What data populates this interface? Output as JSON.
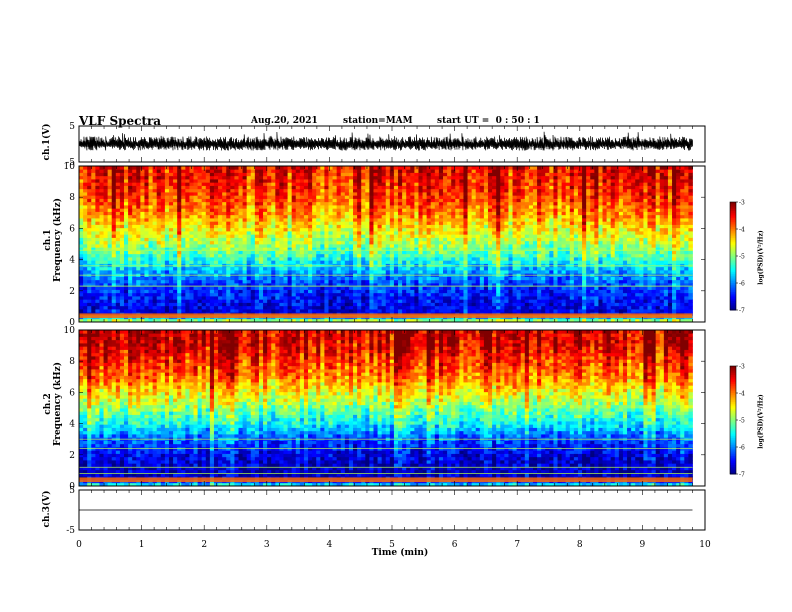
{
  "header": {
    "title": "VLF Spectra",
    "date": "Aug.20, 2021",
    "station": "station=MAM",
    "start_ut": "start UT =  0 : 50 : 1"
  },
  "panels": {
    "ch1_wave": {
      "label": "ch.1(V)",
      "yticks": [
        "5",
        "-5"
      ]
    },
    "ch1_spec": {
      "label": "ch.1\nFrequency (kHz)",
      "yticks": [
        "0",
        "2",
        "4",
        "6",
        "8",
        "10"
      ]
    },
    "ch2_spec": {
      "label": "ch.2\nFrequency (kHz)",
      "yticks": [
        "0",
        "2",
        "4",
        "6",
        "8",
        "10"
      ]
    },
    "ch3_wave": {
      "label": "ch.3(V)",
      "yticks": [
        "5",
        "-5"
      ]
    }
  },
  "colorbar": {
    "label": "log(PSD)(V²/Hz)",
    "ticks": [
      "-3",
      "-4",
      "-5",
      "-6",
      "-7"
    ]
  },
  "xaxis": {
    "label": "Time (min)",
    "ticks": [
      "0",
      "1",
      "2",
      "3",
      "4",
      "5",
      "6",
      "7",
      "8",
      "9",
      "10"
    ]
  },
  "chart_data": {
    "type": "heatmap",
    "title": "VLF Spectra",
    "xlabel": "Time (min)",
    "ylabel": "Frequency (kHz)",
    "xlim": [
      0,
      10
    ],
    "ylim": [
      0,
      10
    ],
    "data_end_time_min": 9.8,
    "color_scale": {
      "label": "log(PSD)(V²/Hz)",
      "range": [
        -7,
        -3
      ],
      "colormap": "jet"
    },
    "series": [
      {
        "name": "ch.1",
        "psd_profile_khz": [
          0,
          0.5,
          1,
          2,
          3,
          4,
          5,
          6,
          7,
          8,
          9,
          10
        ],
        "psd_profile_log": [
          -4.5,
          -6.6,
          -6.6,
          -6.4,
          -6.0,
          -5.4,
          -4.9,
          -4.5,
          -4.1,
          -3.8,
          -3.6,
          -3.5
        ],
        "narrowband_lines_khz": [
          0.4,
          2.3,
          3.0,
          3.6,
          4.6
        ]
      },
      {
        "name": "ch.2",
        "psd_profile_khz": [
          0,
          0.5,
          1,
          2,
          3,
          4,
          5,
          6,
          7,
          8,
          9,
          10
        ],
        "psd_profile_log": [
          -5.4,
          -6.7,
          -6.8,
          -6.6,
          -6.2,
          -5.5,
          -5.0,
          -4.5,
          -4.0,
          -3.7,
          -3.4,
          -3.3
        ],
        "narrowband_lines_khz": [
          0.8,
          1.2,
          2.4,
          3.0
        ]
      }
    ],
    "waveforms": [
      {
        "name": "ch.1(V)",
        "ylim": [
          -5,
          5
        ],
        "level": 0,
        "amplitude_range": [
          -1.8,
          3.5
        ]
      },
      {
        "name": "ch.3(V)",
        "ylim": [
          -5,
          5
        ],
        "level": 0,
        "amplitude_range": [
          0,
          0
        ]
      }
    ]
  }
}
